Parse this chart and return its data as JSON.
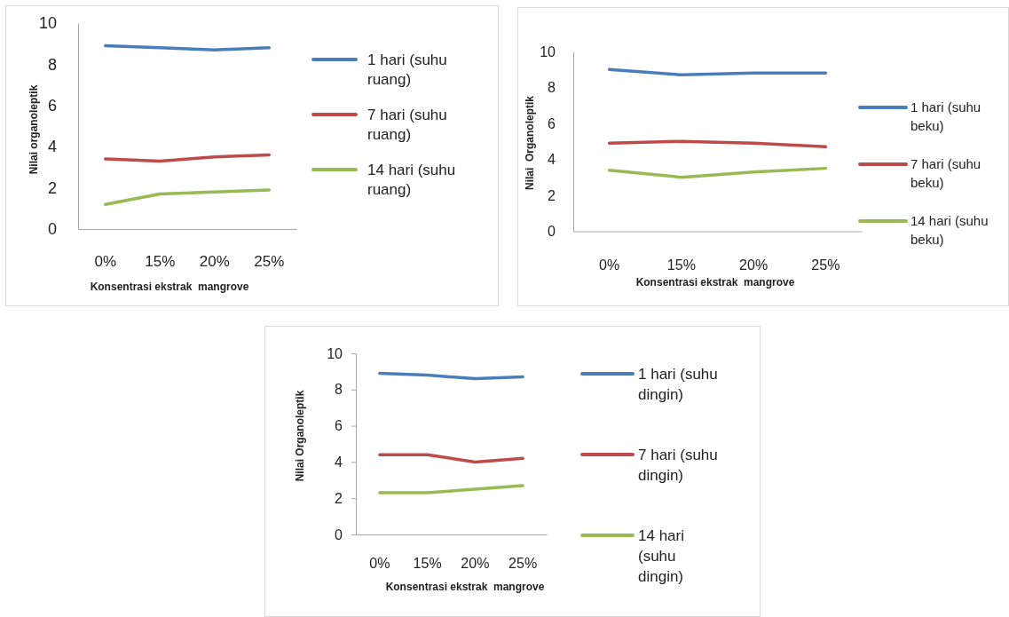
{
  "chart_data": [
    {
      "type": "line",
      "xlabel": "Konsentrasi ekstrak  mangrove",
      "ylabel": "Nilai organoleptik",
      "categories": [
        "0%",
        "15%",
        "20%",
        "25%"
      ],
      "ylim": [
        0,
        10
      ],
      "yticks": [
        0,
        2,
        4,
        6,
        8,
        10
      ],
      "legend": "right",
      "series": [
        {
          "name": "1 hari (suhu ruang)",
          "color": "#4a7ebb",
          "values": [
            8.9,
            8.8,
            8.7,
            8.8
          ]
        },
        {
          "name": "7 hari (suhu ruang)",
          "color": "#be4b48",
          "values": [
            3.4,
            3.3,
            3.5,
            3.6
          ]
        },
        {
          "name": "14 hari (suhu ruang)",
          "color": "#98b954",
          "values": [
            1.2,
            1.7,
            1.8,
            1.9
          ]
        }
      ]
    },
    {
      "type": "line",
      "xlabel": "Konsentrasi ekstrak  mangrove",
      "ylabel": "Nilai  Organoleptik",
      "categories": [
        "0%",
        "15%",
        "20%",
        "25%"
      ],
      "ylim": [
        0,
        10
      ],
      "yticks": [
        0,
        2,
        4,
        6,
        8,
        10
      ],
      "legend": "right",
      "series": [
        {
          "name": "1 hari (suhu beku)",
          "color": "#4a7ebb",
          "values": [
            9.0,
            8.7,
            8.8,
            8.8
          ]
        },
        {
          "name": "7 hari (suhu beku)",
          "color": "#be4b48",
          "values": [
            4.9,
            5.0,
            4.9,
            4.7
          ]
        },
        {
          "name": "14 hari (suhu beku)",
          "color": "#98b954",
          "values": [
            3.4,
            3.0,
            3.3,
            3.5
          ]
        }
      ]
    },
    {
      "type": "line",
      "xlabel": "Konsentrasi ekstrak  mangrove",
      "ylabel": "Nilai Organoleptik",
      "categories": [
        "0%",
        "15%",
        "20%",
        "25%"
      ],
      "ylim": [
        0,
        10
      ],
      "yticks": [
        0,
        2,
        4,
        6,
        8,
        10
      ],
      "legend": "right",
      "series": [
        {
          "name": "1 hari (suhu dingin)",
          "color": "#4a7ebb",
          "values": [
            8.9,
            8.8,
            8.6,
            8.7
          ]
        },
        {
          "name": "7 hari (suhu dingin)",
          "color": "#be4b48",
          "values": [
            4.4,
            4.4,
            4.0,
            4.2
          ]
        },
        {
          "name": "14 hari (suhu dingin)",
          "color": "#98b954",
          "values": [
            2.3,
            2.3,
            2.5,
            2.7
          ]
        }
      ]
    }
  ]
}
